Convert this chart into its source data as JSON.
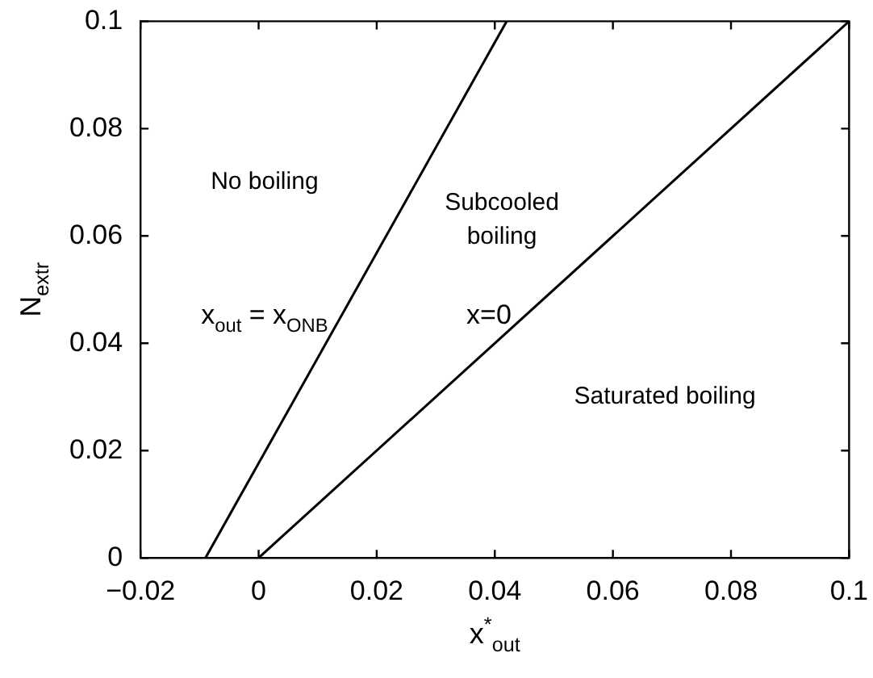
{
  "chart_data": {
    "type": "line",
    "xlabel": "x$^{*}$$_{out}$",
    "ylabel": "N$_{extr}$",
    "xlim": [
      -0.02,
      0.1
    ],
    "xticks": [
      {
        "value": -0.02,
        "label": "−0.02"
      },
      0,
      0.02,
      0.04,
      0.06,
      0.08,
      0.1
    ],
    "ylim": [
      0,
      0.1
    ],
    "yticks": [
      0,
      0.02,
      0.04,
      0.06,
      0.08,
      0.1
    ],
    "series": [
      {
        "name": "x$_{out}$ = x$_{ONB}$",
        "color": "#000000",
        "x": [
          -0.009,
          0.042
        ],
        "values": [
          0,
          0.1
        ]
      },
      {
        "name": "x=0",
        "color": "#000000",
        "x": [
          0,
          0.1
        ],
        "values": [
          0,
          0.1
        ]
      }
    ],
    "annotations": [
      "No boiling",
      "Subcooled\nboiling",
      "Saturated boiling"
    ],
    "grid": false,
    "legend": false,
    "marker": "none",
    "line_style": "solid"
  }
}
